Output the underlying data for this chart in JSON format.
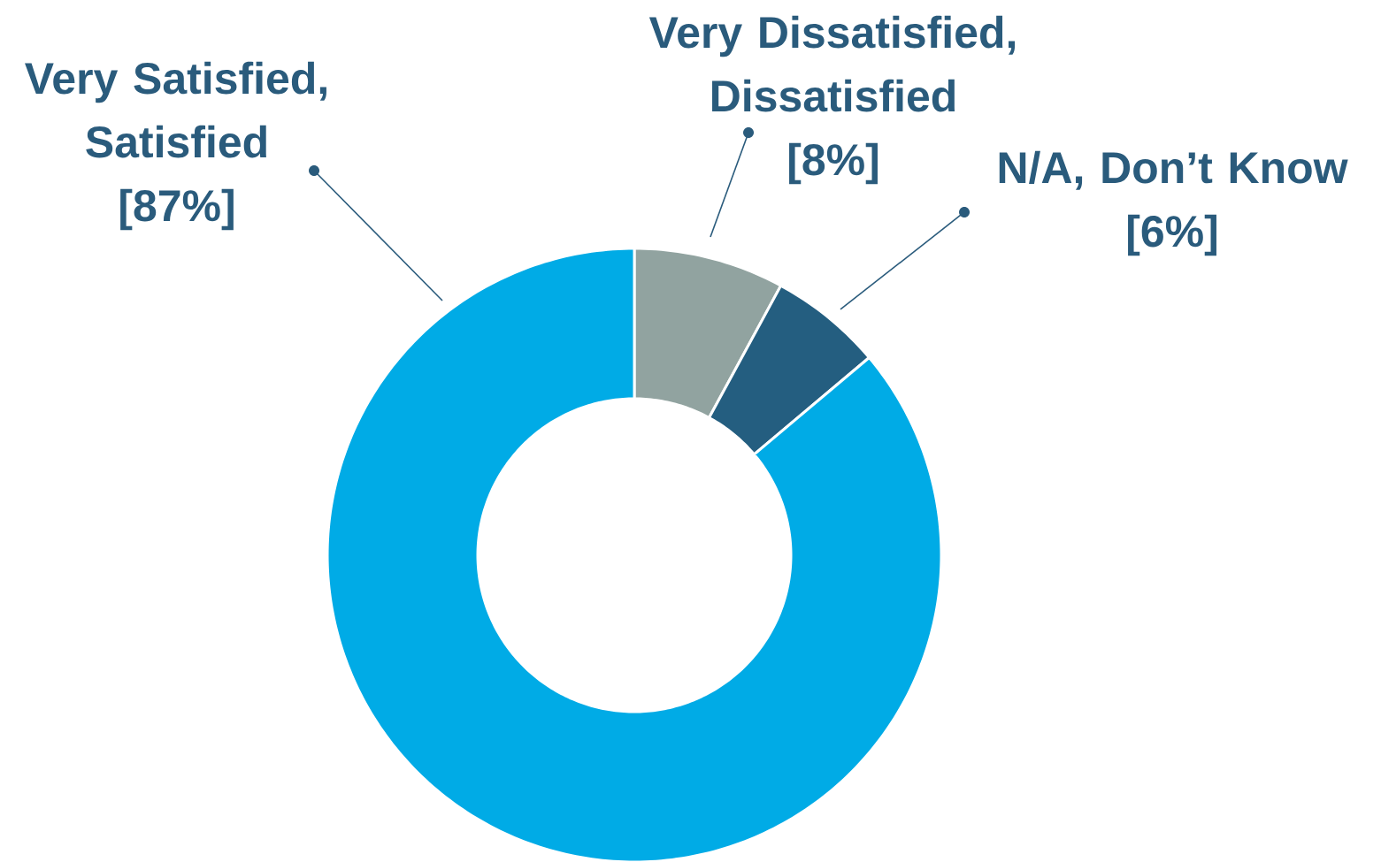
{
  "chart_data": {
    "type": "donut",
    "categories": [
      "Very Dissatisfied, Dissatisfied",
      "N/A, Don’t Know",
      "Very Satisfied, Satisfied"
    ],
    "values": [
      8,
      6,
      87
    ],
    "value_labels": [
      "[8%]",
      "[6%]",
      "[87%]"
    ],
    "colors": [
      "#91a3a0",
      "#245e80",
      "#00abe6"
    ]
  }
}
